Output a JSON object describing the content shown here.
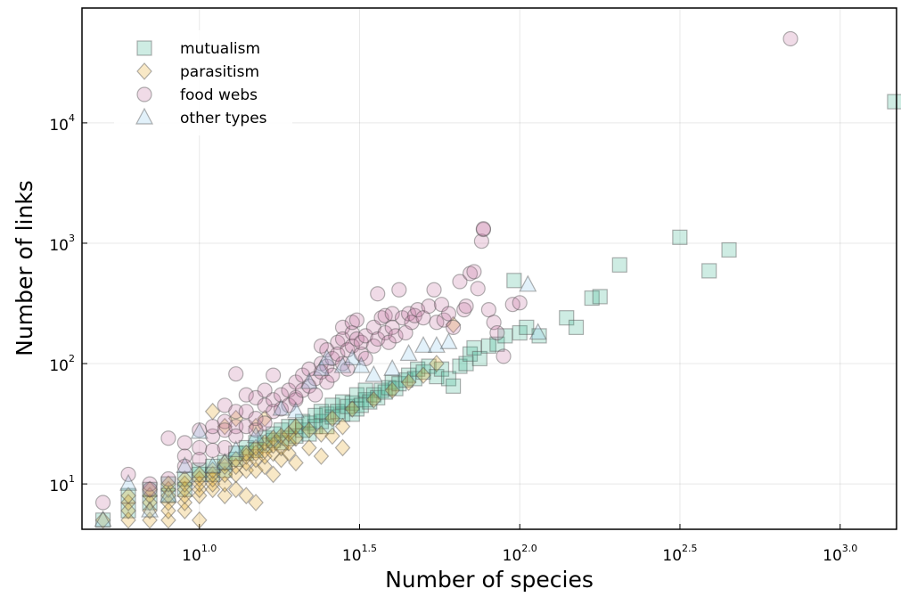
{
  "chart_data": {
    "type": "scatter",
    "title": "",
    "xlabel": "Number of species",
    "ylabel": "Number of links",
    "xscale": "log10",
    "yscale": "log10",
    "xlim": [
      4.3,
      1500
    ],
    "ylim": [
      4.2,
      90000
    ],
    "grid": true,
    "legend_position": "top-left",
    "x_ticks": [
      {
        "value": 10,
        "base": "10",
        "exp": "1.0"
      },
      {
        "value": 31.6228,
        "base": "10",
        "exp": "1.5"
      },
      {
        "value": 100,
        "base": "10",
        "exp": "2.0"
      },
      {
        "value": 316.228,
        "base": "10",
        "exp": "2.5"
      },
      {
        "value": 1000,
        "base": "10",
        "exp": "3.0"
      }
    ],
    "y_ticks": [
      {
        "value": 10,
        "base": "10",
        "exp": "1"
      },
      {
        "value": 100,
        "base": "10",
        "exp": "2"
      },
      {
        "value": 1000,
        "base": "10",
        "exp": "3"
      },
      {
        "value": 10000,
        "base": "10",
        "exp": "4"
      }
    ],
    "series": [
      {
        "name": "mutualism",
        "marker": "square",
        "color": "#3DB28F",
        "points": [
          [
            5,
            5
          ],
          [
            6,
            6
          ],
          [
            6,
            8
          ],
          [
            7,
            7
          ],
          [
            7,
            9
          ],
          [
            8,
            8
          ],
          [
            8,
            10
          ],
          [
            9,
            11
          ],
          [
            9,
            9
          ],
          [
            10,
            12
          ],
          [
            10,
            13
          ],
          [
            11,
            14
          ],
          [
            11,
            12
          ],
          [
            12,
            15
          ],
          [
            12,
            13
          ],
          [
            13,
            16
          ],
          [
            13,
            18
          ],
          [
            14,
            18
          ],
          [
            14,
            20
          ],
          [
            15,
            19
          ],
          [
            15,
            22
          ],
          [
            16,
            21
          ],
          [
            16,
            24
          ],
          [
            17,
            23
          ],
          [
            17,
            26
          ],
          [
            18,
            22
          ],
          [
            18,
            28
          ],
          [
            19,
            24
          ],
          [
            19,
            30
          ],
          [
            20,
            25
          ],
          [
            20,
            30
          ],
          [
            21,
            28
          ],
          [
            21,
            33
          ],
          [
            22,
            32
          ],
          [
            22,
            26
          ],
          [
            23,
            30
          ],
          [
            23,
            37
          ],
          [
            24,
            33
          ],
          [
            24,
            40
          ],
          [
            25,
            38
          ],
          [
            25,
            30
          ],
          [
            26,
            36
          ],
          [
            26,
            45
          ],
          [
            27,
            40
          ],
          [
            28,
            38
          ],
          [
            28,
            48
          ],
          [
            29,
            44
          ],
          [
            30,
            47
          ],
          [
            30,
            38
          ],
          [
            31,
            42
          ],
          [
            31,
            55
          ],
          [
            32,
            45
          ],
          [
            33,
            50
          ],
          [
            33,
            60
          ],
          [
            34,
            48
          ],
          [
            35,
            55
          ],
          [
            36,
            52
          ],
          [
            37,
            60
          ],
          [
            38,
            58
          ],
          [
            39,
            63
          ],
          [
            40,
            70
          ],
          [
            41,
            62
          ],
          [
            42,
            68
          ],
          [
            44,
            73
          ],
          [
            45,
            80
          ],
          [
            47,
            75
          ],
          [
            48,
            90
          ],
          [
            50,
            85
          ],
          [
            52,
            95
          ],
          [
            55,
            78
          ],
          [
            57,
            90
          ],
          [
            60,
            75
          ],
          [
            62,
            65
          ],
          [
            65,
            95
          ],
          [
            68,
            100
          ],
          [
            70,
            120
          ],
          [
            72,
            135
          ],
          [
            75,
            110
          ],
          [
            80,
            140
          ],
          [
            85,
            145
          ],
          [
            90,
            170
          ],
          [
            96,
            490
          ],
          [
            100,
            180
          ],
          [
            105,
            200
          ],
          [
            115,
            170
          ],
          [
            140,
            240
          ],
          [
            150,
            200
          ],
          [
            168,
            350
          ],
          [
            178,
            360
          ],
          [
            205,
            660
          ],
          [
            316,
            1120
          ],
          [
            390,
            590
          ],
          [
            450,
            880
          ],
          [
            1480,
            15000
          ]
        ]
      },
      {
        "name": "parasitism",
        "marker": "diamond",
        "color": "#E3A21C",
        "points": [
          [
            5,
            5
          ],
          [
            6,
            5
          ],
          [
            6,
            6
          ],
          [
            6,
            7
          ],
          [
            6,
            8
          ],
          [
            7,
            5
          ],
          [
            7,
            6
          ],
          [
            7,
            7
          ],
          [
            7,
            8
          ],
          [
            7,
            9
          ],
          [
            8,
            5
          ],
          [
            8,
            6
          ],
          [
            8,
            7
          ],
          [
            8,
            8
          ],
          [
            8,
            9
          ],
          [
            8,
            10
          ],
          [
            9,
            6
          ],
          [
            9,
            7
          ],
          [
            9,
            8
          ],
          [
            9,
            9
          ],
          [
            9,
            10
          ],
          [
            9,
            11
          ],
          [
            10,
            5
          ],
          [
            10,
            8
          ],
          [
            10,
            9
          ],
          [
            10,
            10
          ],
          [
            10,
            11
          ],
          [
            10,
            12
          ],
          [
            11,
            9
          ],
          [
            11,
            10
          ],
          [
            11,
            11
          ],
          [
            11,
            12
          ],
          [
            11,
            13
          ],
          [
            12,
            8
          ],
          [
            12,
            10
          ],
          [
            12,
            12
          ],
          [
            12,
            14
          ],
          [
            12,
            15
          ],
          [
            13,
            9
          ],
          [
            13,
            12
          ],
          [
            13,
            14
          ],
          [
            13,
            16
          ],
          [
            14,
            8
          ],
          [
            14,
            13
          ],
          [
            14,
            15
          ],
          [
            14,
            17
          ],
          [
            14,
            18
          ],
          [
            15,
            7
          ],
          [
            15,
            13
          ],
          [
            15,
            16
          ],
          [
            15,
            18
          ],
          [
            15,
            20
          ],
          [
            16,
            14
          ],
          [
            16,
            17
          ],
          [
            16,
            19
          ],
          [
            16,
            22
          ],
          [
            17,
            12
          ],
          [
            17,
            18
          ],
          [
            17,
            21
          ],
          [
            17,
            24
          ],
          [
            18,
            16
          ],
          [
            18,
            20
          ],
          [
            18,
            25
          ],
          [
            19,
            18
          ],
          [
            19,
            22
          ],
          [
            19,
            26
          ],
          [
            20,
            15
          ],
          [
            20,
            24
          ],
          [
            20,
            30
          ],
          [
            22,
            20
          ],
          [
            22,
            28
          ],
          [
            24,
            17
          ],
          [
            24,
            26
          ],
          [
            26,
            25
          ],
          [
            26,
            35
          ],
          [
            28,
            30
          ],
          [
            30,
            42
          ],
          [
            28,
            20
          ],
          [
            12,
            30
          ],
          [
            11,
            40
          ],
          [
            13,
            35
          ],
          [
            15,
            30
          ],
          [
            16,
            35
          ],
          [
            35,
            50
          ],
          [
            40,
            60
          ],
          [
            45,
            70
          ],
          [
            50,
            80
          ],
          [
            55,
            100
          ],
          [
            62,
            210
          ]
        ]
      },
      {
        "name": "food webs",
        "marker": "circle",
        "color": "#C46FA0",
        "points": [
          [
            5,
            7
          ],
          [
            6,
            12
          ],
          [
            7,
            10
          ],
          [
            7,
            9
          ],
          [
            8,
            24
          ],
          [
            8,
            11
          ],
          [
            9,
            22
          ],
          [
            9,
            17
          ],
          [
            9,
            14
          ],
          [
            10,
            28
          ],
          [
            10,
            20
          ],
          [
            10,
            16
          ],
          [
            11,
            19
          ],
          [
            11,
            25
          ],
          [
            11,
            30
          ],
          [
            12,
            33
          ],
          [
            12,
            20
          ],
          [
            12,
            28
          ],
          [
            12,
            45
          ],
          [
            13,
            30
          ],
          [
            13,
            25
          ],
          [
            13,
            40
          ],
          [
            13,
            82
          ],
          [
            14,
            55
          ],
          [
            14,
            40
          ],
          [
            14,
            30
          ],
          [
            15,
            52
          ],
          [
            15,
            35
          ],
          [
            15,
            28
          ],
          [
            16,
            60
          ],
          [
            16,
            45
          ],
          [
            16,
            32
          ],
          [
            17,
            80
          ],
          [
            17,
            50
          ],
          [
            17,
            40
          ],
          [
            18,
            55
          ],
          [
            18,
            42
          ],
          [
            19,
            60
          ],
          [
            19,
            45
          ],
          [
            20,
            70
          ],
          [
            20,
            52
          ],
          [
            20,
            50
          ],
          [
            21,
            80
          ],
          [
            21,
            60
          ],
          [
            22,
            90
          ],
          [
            22,
            65
          ],
          [
            23,
            75
          ],
          [
            23,
            55
          ],
          [
            24,
            100
          ],
          [
            24,
            85
          ],
          [
            24,
            140
          ],
          [
            25,
            130
          ],
          [
            25,
            95
          ],
          [
            25,
            70
          ],
          [
            26,
            110
          ],
          [
            26,
            80
          ],
          [
            27,
            150
          ],
          [
            27,
            120
          ],
          [
            28,
            200
          ],
          [
            28,
            100
          ],
          [
            28,
            160
          ],
          [
            29,
            130
          ],
          [
            29,
            90
          ],
          [
            30,
            180
          ],
          [
            30,
            220
          ],
          [
            30,
            140
          ],
          [
            31,
            230
          ],
          [
            31,
            160
          ],
          [
            32,
            120
          ],
          [
            32,
            150
          ],
          [
            33,
            170
          ],
          [
            33,
            110
          ],
          [
            35,
            200
          ],
          [
            35,
            140
          ],
          [
            36,
            380
          ],
          [
            36,
            160
          ],
          [
            37,
            240
          ],
          [
            38,
            180
          ],
          [
            38,
            250
          ],
          [
            39,
            150
          ],
          [
            40,
            260
          ],
          [
            40,
            200
          ],
          [
            41,
            170
          ],
          [
            42,
            410
          ],
          [
            43,
            240
          ],
          [
            44,
            180
          ],
          [
            45,
            260
          ],
          [
            46,
            220
          ],
          [
            47,
            250
          ],
          [
            48,
            280
          ],
          [
            50,
            240
          ],
          [
            52,
            300
          ],
          [
            54,
            410
          ],
          [
            55,
            220
          ],
          [
            57,
            310
          ],
          [
            58,
            230
          ],
          [
            60,
            260
          ],
          [
            62,
            200
          ],
          [
            65,
            480
          ],
          [
            67,
            280
          ],
          [
            68,
            300
          ],
          [
            70,
            560
          ],
          [
            72,
            580
          ],
          [
            74,
            420
          ],
          [
            76,
            1040
          ],
          [
            77,
            1300
          ],
          [
            77,
            1320
          ],
          [
            80,
            280
          ],
          [
            83,
            220
          ],
          [
            85,
            180
          ],
          [
            89,
            115
          ],
          [
            95,
            310
          ],
          [
            100,
            320
          ],
          [
            700,
            50000
          ]
        ]
      },
      {
        "name": "other types",
        "marker": "triangle",
        "color": "#8CC9EA",
        "points": [
          [
            5,
            5
          ],
          [
            6,
            10
          ],
          [
            7,
            6
          ],
          [
            8,
            8
          ],
          [
            9,
            14
          ],
          [
            10,
            27
          ],
          [
            11,
            14
          ],
          [
            12,
            15
          ],
          [
            13,
            19
          ],
          [
            15,
            25
          ],
          [
            18,
            42
          ],
          [
            20,
            40
          ],
          [
            22,
            70
          ],
          [
            24,
            90
          ],
          [
            25,
            110
          ],
          [
            28,
            95
          ],
          [
            30,
            110
          ],
          [
            32,
            95
          ],
          [
            35,
            80
          ],
          [
            40,
            90
          ],
          [
            45,
            120
          ],
          [
            50,
            140
          ],
          [
            55,
            140
          ],
          [
            60,
            150
          ],
          [
            106,
            450
          ],
          [
            114,
            180
          ]
        ]
      }
    ]
  }
}
